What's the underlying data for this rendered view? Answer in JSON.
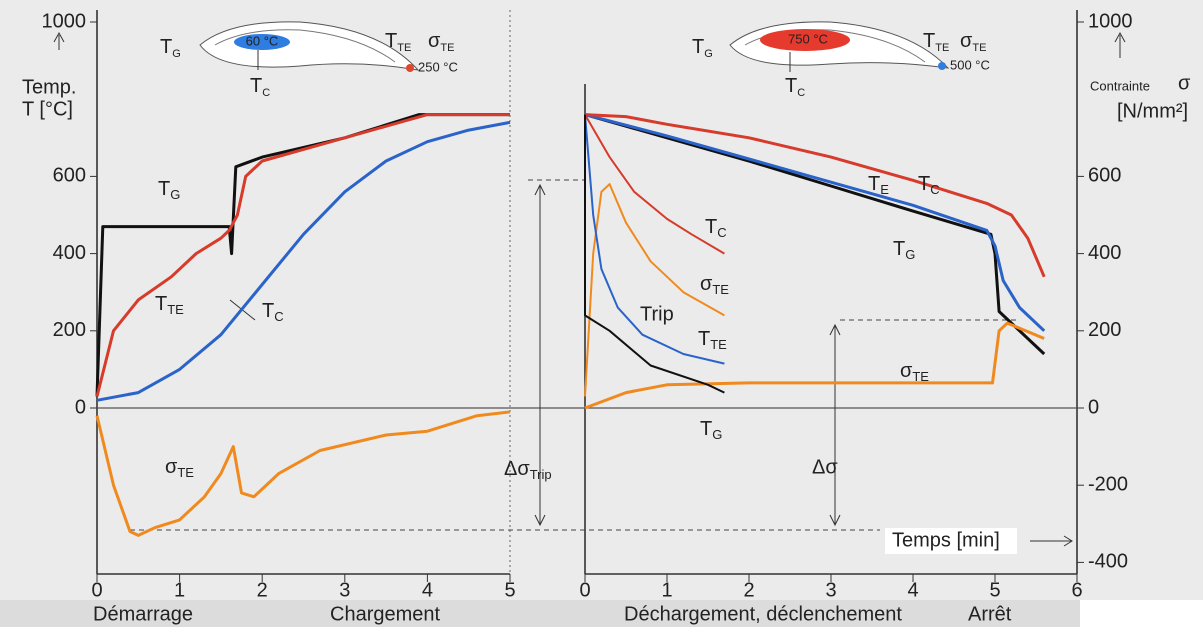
{
  "chart_data": [
    {
      "type": "line",
      "xlim": [
        0,
        5
      ],
      "xticks": [
        0,
        1,
        2,
        3,
        4,
        5
      ],
      "ylim": [
        -400,
        1000
      ],
      "yticks": [
        0,
        200,
        400,
        600,
        1000
      ],
      "ylabel": [
        "Temp.",
        "T [°C]"
      ],
      "phases": [
        "Démarrage",
        "Chargement"
      ],
      "inset": {
        "core": "60 °C",
        "edge": "250 °C",
        "labels": [
          {
            "name": "T",
            "sub": "G"
          },
          {
            "name": "T",
            "sub": "TE"
          },
          {
            "name": "σ",
            "sub": "TE"
          },
          {
            "name": "T",
            "sub": "C"
          }
        ]
      },
      "annotations": [
        {
          "text": "Δσ",
          "sub": "Trip"
        }
      ],
      "series": [
        {
          "name": "T",
          "sub": "G",
          "color": "#111111",
          "x": [
            0,
            0.07,
            1.6,
            1.63,
            1.68,
            2,
            3,
            3.9,
            5
          ],
          "values": [
            30,
            470,
            470,
            400,
            625,
            650,
            700,
            760,
            760
          ]
        },
        {
          "name": "T",
          "sub": "TE",
          "color": "#d63b2b",
          "x": [
            0,
            0.2,
            0.5,
            0.9,
            1.2,
            1.5,
            1.6,
            1.7,
            1.8,
            2,
            3,
            4,
            5
          ],
          "values": [
            30,
            200,
            280,
            340,
            400,
            440,
            460,
            500,
            600,
            640,
            700,
            760,
            760
          ]
        },
        {
          "name": "T",
          "sub": "C",
          "color": "#2a63c9",
          "x": [
            0,
            0.5,
            1,
            1.5,
            2,
            2.5,
            3,
            3.5,
            4,
            4.5,
            5
          ],
          "values": [
            20,
            40,
            100,
            190,
            320,
            450,
            560,
            640,
            690,
            720,
            740
          ]
        },
        {
          "name": "σ",
          "sub": "TE",
          "color": "#f08a1e",
          "x": [
            0,
            0.2,
            0.4,
            0.5,
            0.7,
            1,
            1.3,
            1.5,
            1.65,
            1.75,
            1.9,
            2.2,
            2.7,
            3.5,
            4,
            4.3,
            4.6,
            5
          ],
          "values": [
            -20,
            -200,
            -320,
            -330,
            -310,
            -290,
            -230,
            -170,
            -100,
            -220,
            -230,
            -170,
            -110,
            -70,
            -60,
            -40,
            -20,
            -10
          ]
        }
      ]
    },
    {
      "type": "line",
      "xlim": [
        0,
        6
      ],
      "xticks": [
        0,
        1,
        2,
        3,
        4,
        5,
        6
      ],
      "y2lim": [
        -400,
        1000
      ],
      "y2ticks": [
        -400,
        -200,
        0,
        200,
        400,
        600,
        1000
      ],
      "ylabel": [
        "Contrainte",
        "σ",
        "[N/mm²]"
      ],
      "xlabel": "Temps [min]",
      "phases": [
        "Déchargement, déclenchement",
        "Arrêt"
      ],
      "inset": {
        "core": "750 °C",
        "edge": "500 °C",
        "labels": [
          {
            "name": "T",
            "sub": "G"
          },
          {
            "name": "T",
            "sub": "TE"
          },
          {
            "name": "σ",
            "sub": "TE"
          },
          {
            "name": "T",
            "sub": "C"
          }
        ]
      },
      "annotations": [
        {
          "text": "Trip"
        },
        {
          "text": "Δσ"
        }
      ],
      "series": [
        {
          "name": "T",
          "sub": "G",
          "color": "#111111",
          "axis": "y2",
          "x": [
            0,
            1,
            2,
            3,
            4,
            4.95,
            5,
            5.05,
            5.2,
            5.6
          ],
          "values": [
            760,
            700,
            640,
            575,
            510,
            450,
            400,
            250,
            220,
            140
          ]
        },
        {
          "name": "T",
          "sub": "E",
          "color": "#2a63c9",
          "axis": "y2",
          "x": [
            0,
            1,
            2,
            3,
            4,
            4.9,
            5,
            5.1,
            5.3,
            5.6
          ],
          "values": [
            760,
            705,
            645,
            585,
            525,
            460,
            420,
            330,
            260,
            200
          ]
        },
        {
          "name": "T",
          "sub": "C",
          "color": "#d63b2b",
          "axis": "y2",
          "x": [
            0,
            0.5,
            1,
            2,
            3,
            4,
            4.9,
            5.2,
            5.4,
            5.6
          ],
          "values": [
            760,
            755,
            735,
            700,
            650,
            590,
            530,
            500,
            440,
            340
          ]
        },
        {
          "name": "σ",
          "sub": "TE",
          "color": "#f08a1e",
          "axis": "y2",
          "x": [
            0,
            0.5,
            1,
            2,
            3,
            4,
            4.97,
            5.05,
            5.15,
            5.6
          ],
          "values": [
            0,
            40,
            60,
            65,
            65,
            65,
            65,
            200,
            220,
            180
          ]
        },
        {
          "name": "T",
          "sub": "C",
          "color": "#d63b2b",
          "axis": "y2",
          "x": [
            0,
            0.3,
            0.6,
            1,
            1.3,
            1.7
          ],
          "values": [
            760,
            650,
            560,
            490,
            450,
            400
          ]
        },
        {
          "name": "σ",
          "sub": "TE",
          "color": "#f08a1e",
          "axis": "y2",
          "x": [
            0,
            0.1,
            0.2,
            0.3,
            0.5,
            0.8,
            1.2,
            1.7
          ],
          "values": [
            30,
            400,
            560,
            580,
            480,
            380,
            300,
            240
          ]
        },
        {
          "name": "T",
          "sub": "TE",
          "color": "#2a63c9",
          "axis": "y2",
          "x": [
            0,
            0.1,
            0.2,
            0.4,
            0.7,
            1.2,
            1.7
          ],
          "values": [
            760,
            500,
            360,
            260,
            190,
            140,
            115
          ]
        },
        {
          "name": "T",
          "sub": "G",
          "color": "#111111",
          "axis": "y2",
          "x": [
            0,
            0,
            0.3,
            0.8,
            1.5,
            1.7
          ],
          "values": [
            760,
            240,
            200,
            110,
            60,
            40
          ]
        }
      ]
    }
  ]
}
